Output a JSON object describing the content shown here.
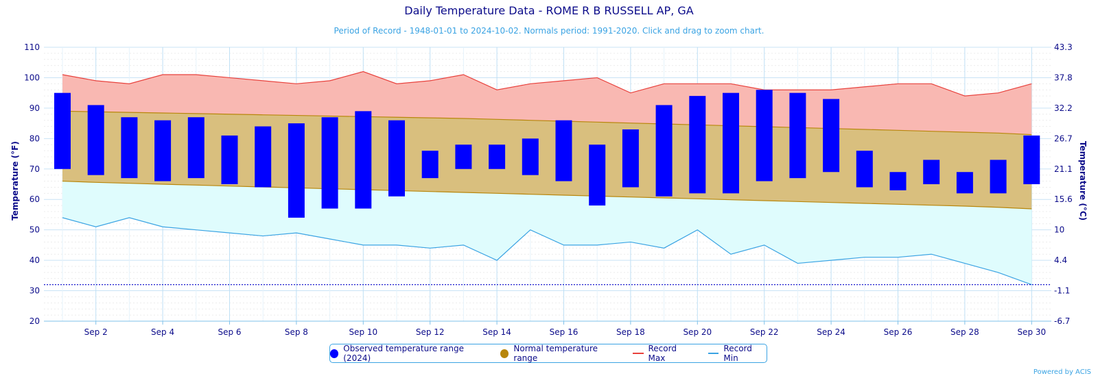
{
  "chart_data": {
    "type": "bar",
    "title": "Daily Temperature Data - ROME R B RUSSELL AP, GA",
    "subtitle": "Period of Record - 1948-01-01 to 2024-10-02. Normals period: 1991-2020. Click and drag to zoom chart.",
    "ylabel": "Temperature (°F)",
    "ylabel_right": "Temperature (°C)",
    "ylim": [
      20,
      110
    ],
    "yticks": [
      20,
      30,
      40,
      50,
      60,
      70,
      80,
      90,
      100,
      110
    ],
    "yticks_right": [
      "-6.7",
      "-1.1",
      "4.4",
      "10",
      "15.6",
      "21.1",
      "26.7",
      "32.2",
      "37.8",
      "43.3"
    ],
    "freezing_line": 32,
    "days": [
      1,
      2,
      3,
      4,
      5,
      6,
      7,
      8,
      9,
      10,
      11,
      12,
      13,
      14,
      15,
      16,
      17,
      18,
      19,
      20,
      21,
      22,
      23,
      24,
      25,
      26,
      27,
      28,
      29,
      30
    ],
    "x_tick_labels": [
      "Sep 2",
      "Sep 4",
      "Sep 6",
      "Sep 8",
      "Sep 10",
      "Sep 12",
      "Sep 14",
      "Sep 16",
      "Sep 18",
      "Sep 20",
      "Sep 22",
      "Sep 24",
      "Sep 26",
      "Sep 28",
      "Sep 30"
    ],
    "series": [
      {
        "name": "Observed temperature range (2024)",
        "color": "#0000ff",
        "low": [
          70,
          68,
          67,
          66,
          67,
          65,
          64,
          54,
          57,
          57,
          61,
          67,
          70,
          70,
          68,
          66,
          58,
          64,
          61,
          62,
          62,
          66,
          67,
          69,
          64,
          63,
          65,
          62,
          62,
          65
        ],
        "high": [
          95,
          91,
          87,
          86,
          87,
          81,
          84,
          85,
          87,
          89,
          86,
          76,
          78,
          78,
          80,
          86,
          78,
          83,
          91,
          94,
          95,
          96,
          95,
          93,
          76,
          69,
          73,
          69,
          73,
          81
        ]
      },
      {
        "name": "Normal temperature range",
        "color": "#b8860b",
        "low": [
          66,
          65.6,
          65.3,
          65,
          64.7,
          64.4,
          64.1,
          63.8,
          63.5,
          63.2,
          62.9,
          62.6,
          62.3,
          62,
          61.7,
          61.4,
          61.1,
          60.8,
          60.5,
          60.2,
          59.9,
          59.6,
          59.3,
          59,
          58.7,
          58.4,
          58.1,
          57.8,
          57.4,
          56.9
        ],
        "high": [
          89,
          88.8,
          88.6,
          88.4,
          88.2,
          88,
          87.8,
          87.6,
          87.4,
          87.2,
          87,
          86.8,
          86.6,
          86.3,
          86,
          85.7,
          85.4,
          85.1,
          84.8,
          84.5,
          84.2,
          83.9,
          83.6,
          83.3,
          83,
          82.7,
          82.4,
          82.1,
          81.8,
          81.3
        ]
      },
      {
        "name": "Record Max",
        "color": "#e8413c",
        "values": [
          101,
          99,
          98,
          101,
          101,
          100,
          99,
          98,
          99,
          102,
          98,
          99,
          101,
          96,
          98,
          99,
          100,
          95,
          98,
          98,
          98,
          96,
          96,
          96,
          97,
          98,
          98,
          94,
          95,
          98
        ]
      },
      {
        "name": "Record Min",
        "color": "#3aa3e3",
        "values": [
          54,
          51,
          54,
          51,
          50,
          49,
          48,
          49,
          47,
          45,
          45,
          44,
          45,
          40,
          50,
          45,
          45,
          46,
          44,
          50,
          42,
          45,
          39,
          40,
          41,
          41,
          42,
          39,
          36,
          32
        ]
      }
    ],
    "legend_position": "bottom-center",
    "credit": "Powered by ACIS"
  }
}
